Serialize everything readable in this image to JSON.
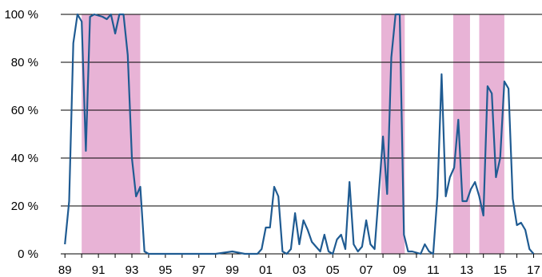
{
  "chart_data": {
    "type": "line",
    "x_unit": "year",
    "xlim": [
      1988.75,
      2017.5
    ],
    "ylim": [
      0,
      100
    ],
    "y_ticks": [
      {
        "value": 0,
        "label": "0 %"
      },
      {
        "value": 20,
        "label": "20 %"
      },
      {
        "value": 40,
        "label": "40 %"
      },
      {
        "value": 60,
        "label": "60 %"
      },
      {
        "value": 80,
        "label": "80 %"
      },
      {
        "value": 100,
        "label": "100 %"
      }
    ],
    "x_ticks": [
      {
        "value": 1989,
        "label": "89"
      },
      {
        "value": 1991,
        "label": "91"
      },
      {
        "value": 1993,
        "label": "93"
      },
      {
        "value": 1995,
        "label": "95"
      },
      {
        "value": 1997,
        "label": "97"
      },
      {
        "value": 1999,
        "label": "99"
      },
      {
        "value": 2001,
        "label": "01"
      },
      {
        "value": 2003,
        "label": "03"
      },
      {
        "value": 2005,
        "label": "05"
      },
      {
        "value": 2007,
        "label": "07"
      },
      {
        "value": 2009,
        "label": "09"
      },
      {
        "value": 2011,
        "label": "11"
      },
      {
        "value": 2013,
        "label": "13"
      },
      {
        "value": 2015,
        "label": "15"
      },
      {
        "value": 2017,
        "label": "17"
      }
    ],
    "grid": "horizontal",
    "shaded_periods": [
      {
        "start": 1990.0,
        "end": 1993.5
      },
      {
        "start": 2007.9,
        "end": 2009.3
      },
      {
        "start": 2012.2,
        "end": 2013.2
      },
      {
        "start": 2013.75,
        "end": 2015.25
      }
    ],
    "series": [
      {
        "values": [
          [
            1989.0,
            4
          ],
          [
            1989.25,
            22
          ],
          [
            1989.5,
            88
          ],
          [
            1989.75,
            100
          ],
          [
            1990.0,
            97
          ],
          [
            1990.25,
            43
          ],
          [
            1990.5,
            99
          ],
          [
            1990.75,
            100
          ],
          [
            1991.25,
            99
          ],
          [
            1991.5,
            98
          ],
          [
            1991.75,
            100
          ],
          [
            1992.0,
            92
          ],
          [
            1992.25,
            100
          ],
          [
            1992.5,
            100
          ],
          [
            1992.75,
            83
          ],
          [
            1993.0,
            40
          ],
          [
            1993.25,
            24
          ],
          [
            1993.5,
            28
          ],
          [
            1993.75,
            1
          ],
          [
            1994.0,
            0
          ],
          [
            1995.0,
            0
          ],
          [
            1996.0,
            0
          ],
          [
            1997.0,
            0
          ],
          [
            1998.0,
            0
          ],
          [
            1999.0,
            1
          ],
          [
            1999.75,
            0
          ],
          [
            2000.5,
            0
          ],
          [
            2000.75,
            2
          ],
          [
            2001.0,
            11
          ],
          [
            2001.25,
            11
          ],
          [
            2001.5,
            28
          ],
          [
            2001.75,
            24
          ],
          [
            2002.0,
            1
          ],
          [
            2002.25,
            0
          ],
          [
            2002.5,
            2
          ],
          [
            2002.75,
            17
          ],
          [
            2003.0,
            4
          ],
          [
            2003.25,
            14
          ],
          [
            2003.5,
            10
          ],
          [
            2003.75,
            5
          ],
          [
            2004.0,
            3
          ],
          [
            2004.25,
            1
          ],
          [
            2004.5,
            8
          ],
          [
            2004.75,
            1
          ],
          [
            2005.0,
            0
          ],
          [
            2005.25,
            6
          ],
          [
            2005.5,
            8
          ],
          [
            2005.75,
            2
          ],
          [
            2006.0,
            30
          ],
          [
            2006.25,
            4
          ],
          [
            2006.5,
            1
          ],
          [
            2006.75,
            3
          ],
          [
            2007.0,
            14
          ],
          [
            2007.25,
            4
          ],
          [
            2007.5,
            2
          ],
          [
            2007.75,
            25
          ],
          [
            2008.0,
            49
          ],
          [
            2008.25,
            25
          ],
          [
            2008.5,
            82
          ],
          [
            2008.75,
            100
          ],
          [
            2009.0,
            100
          ],
          [
            2009.25,
            8
          ],
          [
            2009.5,
            1
          ],
          [
            2009.75,
            1
          ],
          [
            2010.25,
            0
          ],
          [
            2010.5,
            4
          ],
          [
            2010.75,
            1
          ],
          [
            2011.0,
            0
          ],
          [
            2011.25,
            24
          ],
          [
            2011.5,
            75
          ],
          [
            2011.75,
            24
          ],
          [
            2012.0,
            32
          ],
          [
            2012.25,
            36
          ],
          [
            2012.5,
            56
          ],
          [
            2012.75,
            22
          ],
          [
            2013.0,
            22
          ],
          [
            2013.25,
            27
          ],
          [
            2013.5,
            30
          ],
          [
            2013.75,
            24
          ],
          [
            2014.0,
            16
          ],
          [
            2014.25,
            70
          ],
          [
            2014.5,
            67
          ],
          [
            2014.75,
            32
          ],
          [
            2015.0,
            40
          ],
          [
            2015.25,
            72
          ],
          [
            2015.5,
            69
          ],
          [
            2015.75,
            23
          ],
          [
            2016.0,
            12
          ],
          [
            2016.25,
            13
          ],
          [
            2016.5,
            10
          ],
          [
            2016.75,
            2
          ],
          [
            2017.0,
            0
          ]
        ],
        "color": "#1f5b92"
      }
    ],
    "shade_color": "#e8b3d6"
  }
}
